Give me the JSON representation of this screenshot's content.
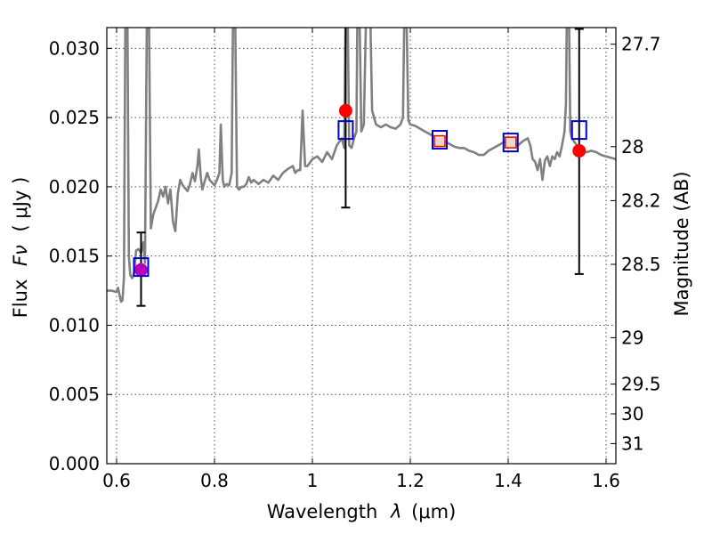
{
  "chart_data": {
    "type": "line",
    "title": "",
    "xlabel_prefix": "Wavelength",
    "xlabel_symbol": "λ",
    "xlabel_unit": "(μm)",
    "ylabel_prefix": "Flux",
    "ylabel_symbol": "Fν",
    "ylabel_unit": "( μJy )",
    "y2label": "Magnitude (AB)",
    "xlim": [
      0.58,
      1.62
    ],
    "ylim": [
      0.0,
      0.0315
    ],
    "grid": true,
    "x_ticks": [
      0.6,
      0.8,
      1.0,
      1.2,
      1.4,
      1.6
    ],
    "x_tick_labels": [
      "0.6",
      "0.8",
      "1",
      "1.2",
      "1.4",
      "1.6"
    ],
    "y_ticks": [
      0.0,
      0.005,
      0.01,
      0.015,
      0.02,
      0.025,
      0.03
    ],
    "y_tick_labels": [
      "0.000",
      "0.005",
      "0.010",
      "0.015",
      "0.020",
      "0.025",
      "0.030"
    ],
    "y2_ticks": [
      {
        "label": "27.7",
        "flux": 0.0303
      },
      {
        "label": "28",
        "flux": 0.0229
      },
      {
        "label": "28.2",
        "flux": 0.019
      },
      {
        "label": "28.5",
        "flux": 0.0144
      },
      {
        "label": "29",
        "flux": 0.0091
      },
      {
        "label": "29.5",
        "flux": 0.00575
      },
      {
        "label": "30",
        "flux": 0.0036
      },
      {
        "label": "31",
        "flux": 0.00145
      }
    ],
    "colors": {
      "spectrum": "#808080",
      "observed": "#ff0000",
      "model_box": "#0000cc",
      "magenta": "#bb00bb",
      "errorbar": "#000000"
    },
    "series": [
      {
        "kind": "template-spectrum",
        "points": [
          [
            0.58,
            0.0125
          ],
          [
            0.59,
            0.0125
          ],
          [
            0.6,
            0.0124
          ],
          [
            0.603,
            0.0127
          ],
          [
            0.606,
            0.0122
          ],
          [
            0.609,
            0.0117
          ],
          [
            0.612,
            0.0118
          ],
          [
            0.615,
            0.0135
          ],
          [
            0.618,
            0.033
          ],
          [
            0.622,
            0.033
          ],
          [
            0.625,
            0.015
          ],
          [
            0.628,
            0.0136
          ],
          [
            0.632,
            0.0134
          ],
          [
            0.636,
            0.0138
          ],
          [
            0.64,
            0.0154
          ],
          [
            0.645,
            0.0155
          ],
          [
            0.65,
            0.0152
          ],
          [
            0.655,
            0.016
          ],
          [
            0.658,
            0.0145
          ],
          [
            0.662,
            0.033
          ],
          [
            0.666,
            0.033
          ],
          [
            0.67,
            0.017
          ],
          [
            0.675,
            0.018
          ],
          [
            0.68,
            0.0185
          ],
          [
            0.685,
            0.019
          ],
          [
            0.69,
            0.0198
          ],
          [
            0.695,
            0.0193
          ],
          [
            0.7,
            0.02
          ],
          [
            0.705,
            0.0188
          ],
          [
            0.71,
            0.0198
          ],
          [
            0.715,
            0.0175
          ],
          [
            0.72,
            0.0168
          ],
          [
            0.725,
            0.0195
          ],
          [
            0.73,
            0.0205
          ],
          [
            0.735,
            0.0201
          ],
          [
            0.74,
            0.0199
          ],
          [
            0.745,
            0.0197
          ],
          [
            0.75,
            0.0202
          ],
          [
            0.755,
            0.021
          ],
          [
            0.76,
            0.0204
          ],
          [
            0.765,
            0.0215
          ],
          [
            0.768,
            0.0227
          ],
          [
            0.772,
            0.0207
          ],
          [
            0.775,
            0.0198
          ],
          [
            0.78,
            0.0204
          ],
          [
            0.785,
            0.021
          ],
          [
            0.79,
            0.0205
          ],
          [
            0.795,
            0.0203
          ],
          [
            0.8,
            0.0201
          ],
          [
            0.805,
            0.0205
          ],
          [
            0.81,
            0.021
          ],
          [
            0.813,
            0.0245
          ],
          [
            0.817,
            0.0205
          ],
          [
            0.82,
            0.02
          ],
          [
            0.825,
            0.0202
          ],
          [
            0.83,
            0.0201
          ],
          [
            0.835,
            0.021
          ],
          [
            0.838,
            0.033
          ],
          [
            0.842,
            0.033
          ],
          [
            0.846,
            0.02
          ],
          [
            0.85,
            0.0198
          ],
          [
            0.855,
            0.02
          ],
          [
            0.86,
            0.02
          ],
          [
            0.865,
            0.0202
          ],
          [
            0.87,
            0.0207
          ],
          [
            0.875,
            0.0203
          ],
          [
            0.88,
            0.0205
          ],
          [
            0.89,
            0.0202
          ],
          [
            0.9,
            0.0205
          ],
          [
            0.91,
            0.0203
          ],
          [
            0.92,
            0.0208
          ],
          [
            0.93,
            0.0205
          ],
          [
            0.94,
            0.021
          ],
          [
            0.95,
            0.0213
          ],
          [
            0.96,
            0.0215
          ],
          [
            0.965,
            0.021
          ],
          [
            0.97,
            0.0212
          ],
          [
            0.975,
            0.0212
          ],
          [
            0.98,
            0.0255
          ],
          [
            0.985,
            0.0215
          ],
          [
            0.99,
            0.0215
          ],
          [
            1.0,
            0.022
          ],
          [
            1.01,
            0.0222
          ],
          [
            1.02,
            0.0218
          ],
          [
            1.03,
            0.0225
          ],
          [
            1.04,
            0.022
          ],
          [
            1.05,
            0.023
          ],
          [
            1.06,
            0.0235
          ],
          [
            1.065,
            0.0228
          ],
          [
            1.068,
            0.033
          ],
          [
            1.072,
            0.033
          ],
          [
            1.075,
            0.023
          ],
          [
            1.08,
            0.0228
          ],
          [
            1.085,
            0.0235
          ],
          [
            1.09,
            0.024
          ],
          [
            1.092,
            0.033
          ],
          [
            1.096,
            0.033
          ],
          [
            1.1,
            0.024
          ],
          [
            1.105,
            0.0245
          ],
          [
            1.11,
            0.033
          ],
          [
            1.118,
            0.033
          ],
          [
            1.122,
            0.0255
          ],
          [
            1.13,
            0.0245
          ],
          [
            1.14,
            0.0243
          ],
          [
            1.15,
            0.0245
          ],
          [
            1.16,
            0.0243
          ],
          [
            1.17,
            0.0242
          ],
          [
            1.18,
            0.0245
          ],
          [
            1.185,
            0.025
          ],
          [
            1.188,
            0.033
          ],
          [
            1.192,
            0.033
          ],
          [
            1.196,
            0.0248
          ],
          [
            1.2,
            0.0245
          ],
          [
            1.21,
            0.0244
          ],
          [
            1.22,
            0.0242
          ],
          [
            1.23,
            0.024
          ],
          [
            1.24,
            0.0238
          ],
          [
            1.25,
            0.0236
          ],
          [
            1.26,
            0.0235
          ],
          [
            1.27,
            0.0233
          ],
          [
            1.28,
            0.0231
          ],
          [
            1.29,
            0.0229
          ],
          [
            1.3,
            0.0228
          ],
          [
            1.31,
            0.0228
          ],
          [
            1.32,
            0.0226
          ],
          [
            1.33,
            0.0225
          ],
          [
            1.34,
            0.0223
          ],
          [
            1.35,
            0.0223
          ],
          [
            1.36,
            0.0226
          ],
          [
            1.37,
            0.0228
          ],
          [
            1.38,
            0.023
          ],
          [
            1.39,
            0.0232
          ],
          [
            1.4,
            0.0233
          ],
          [
            1.41,
            0.0232
          ],
          [
            1.42,
            0.023
          ],
          [
            1.43,
            0.0233
          ],
          [
            1.44,
            0.0235
          ],
          [
            1.445,
            0.023
          ],
          [
            1.45,
            0.022
          ],
          [
            1.455,
            0.0218
          ],
          [
            1.46,
            0.0212
          ],
          [
            1.465,
            0.022
          ],
          [
            1.47,
            0.0205
          ],
          [
            1.475,
            0.0219
          ],
          [
            1.48,
            0.0222
          ],
          [
            1.485,
            0.0215
          ],
          [
            1.49,
            0.0222
          ],
          [
            1.495,
            0.022
          ],
          [
            1.5,
            0.0225
          ],
          [
            1.505,
            0.0222
          ],
          [
            1.51,
            0.023
          ],
          [
            1.515,
            0.024
          ],
          [
            1.518,
            0.026
          ],
          [
            1.52,
            0.033
          ],
          [
            1.524,
            0.033
          ],
          [
            1.527,
            0.024
          ],
          [
            1.53,
            0.0235
          ],
          [
            1.54,
            0.023
          ],
          [
            1.55,
            0.0226
          ],
          [
            1.56,
            0.0225
          ],
          [
            1.57,
            0.0226
          ],
          [
            1.58,
            0.0225
          ],
          [
            1.59,
            0.0223
          ],
          [
            1.6,
            0.0222
          ],
          [
            1.61,
            0.0221
          ],
          [
            1.62,
            0.022
          ]
        ]
      },
      {
        "kind": "observed-photometry",
        "points": [
          {
            "x": 0.65,
            "y": 0.014,
            "yerr_low": 0.0114,
            "yerr_high": 0.0167
          },
          {
            "x": 1.068,
            "y": 0.0255,
            "yerr_low": 0.0185,
            "yerr_high": 0.032
          },
          {
            "x": 1.26,
            "y": 0.0233
          },
          {
            "x": 1.405,
            "y": 0.0232
          },
          {
            "x": 1.545,
            "y": 0.0226,
            "yerr_low": 0.0137,
            "yerr_high": 0.0314
          }
        ]
      },
      {
        "kind": "model-photometry",
        "points": [
          {
            "x": 0.65,
            "y": 0.0142
          },
          {
            "x": 1.068,
            "y": 0.0241
          },
          {
            "x": 1.26,
            "y": 0.0234
          },
          {
            "x": 1.405,
            "y": 0.0232
          },
          {
            "x": 1.545,
            "y": 0.0241
          }
        ]
      }
    ]
  }
}
